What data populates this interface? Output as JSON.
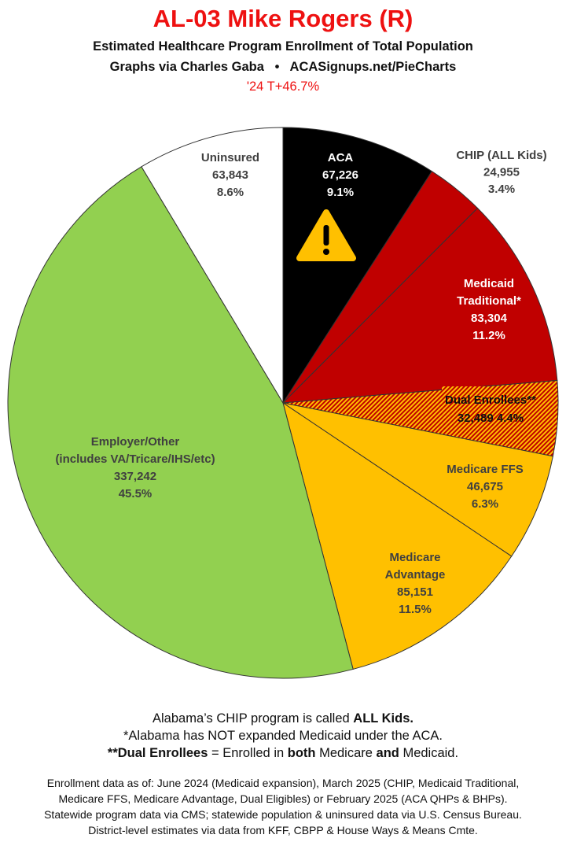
{
  "header": {
    "title": "AL-03 Mike Rogers (R)",
    "subtitle": "Estimated Healthcare Program Enrollment of Total Population",
    "credit": "Graphs via Charles Gaba   •   ACASignups.net/PieCharts",
    "trend": "'24 T+46.7%"
  },
  "chart_data": {
    "type": "pie",
    "start": "12 o'clock, clockwise",
    "slices": [
      {
        "label": "ACA",
        "lines": [
          "ACA"
        ],
        "value": "67,226",
        "percent": "9.1%",
        "pct": 9.1,
        "color": "#000000",
        "text_color": "#ffffff",
        "icon": "warning-icon"
      },
      {
        "label": "CHIP (ALL Kids)",
        "lines": [
          "CHIP (ALL Kids)"
        ],
        "value": "24,955",
        "percent": "3.4%",
        "pct": 3.4,
        "color": "#c00000",
        "text_color": "#404040"
      },
      {
        "label": "Medicaid Traditional*",
        "lines": [
          "Medicaid",
          "Traditional*"
        ],
        "value": "83,304",
        "percent": "11.2%",
        "pct": 11.2,
        "color": "#c00000",
        "text_color": "#ffffff"
      },
      {
        "label": "Dual Enrollees**",
        "lines": [
          "Dual Enrollees**"
        ],
        "value": "32,489",
        "percent": "4.4%",
        "pct": 4.4,
        "color": "hatch:#c00000/#ffc000",
        "text_color": "#111111"
      },
      {
        "label": "Medicare FFS",
        "lines": [
          "Medicare FFS"
        ],
        "value": "46,675",
        "percent": "6.3%",
        "pct": 6.3,
        "color": "#ffc000",
        "text_color": "#404040"
      },
      {
        "label": "Medicare Advantage",
        "lines": [
          "Medicare",
          "Advantage"
        ],
        "value": "85,151",
        "percent": "11.5%",
        "pct": 11.5,
        "color": "#ffc000",
        "text_color": "#404040"
      },
      {
        "label": "Employer/Other (includes VA/Tricare/IHS/etc)",
        "lines": [
          "Employer/Other",
          "(includes VA/Tricare/IHS/etc)"
        ],
        "value": "337,242",
        "percent": "45.5%",
        "pct": 45.5,
        "color": "#92d050",
        "text_color": "#404040"
      },
      {
        "label": "Uninsured",
        "lines": [
          "Uninsured"
        ],
        "value": "63,843",
        "percent": "8.6%",
        "pct": 8.6,
        "color": "#ffffff",
        "text_color": "#404040"
      }
    ]
  },
  "notes": {
    "l1a": "Alabama’s CHIP program is called ",
    "l1b": "ALL Kids.",
    "l2": "*Alabama has NOT expanded Medicaid under the ACA.",
    "l3a": "**Dual Enrollees",
    "l3b": " = Enrolled in ",
    "l3c": "both",
    "l3d": " Medicare ",
    "l3e": "and",
    "l3f": " Medicaid."
  },
  "footer": [
    "Enrollment data as of: June 2024 (Medicaid expansion), March 2025 (CHIP, Medicaid Traditional,",
    "Medicare FFS, Medicare Advantage, Dual Eligibles) or February 2025 (ACA QHPs & BHPs).",
    "Statewide program data via CMS; statewide population & uninsured data via U.S. Census Bureau.",
    "District-level estimates via data from KFF, CBPP & House Ways & Means Cmte."
  ]
}
